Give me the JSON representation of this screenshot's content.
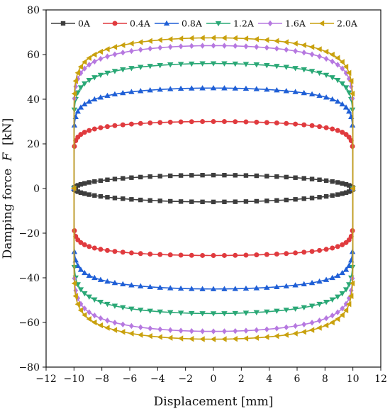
{
  "chart_data": {
    "type": "line",
    "title": "",
    "xlabel": "Displacement [mm]",
    "ylabel": "Damping force",
    "ylabel_var": "F",
    "ylabel_unit": "[kN]",
    "xlim": [
      -12,
      12
    ],
    "ylim": [
      -80,
      80
    ],
    "xticks": [
      -12,
      -10,
      -8,
      -6,
      -4,
      -2,
      0,
      2,
      4,
      6,
      8,
      10,
      12
    ],
    "yticks": [
      -80,
      -60,
      -40,
      -20,
      0,
      20,
      40,
      60,
      80
    ],
    "grid": false,
    "legend_position": "top",
    "amplitude_mm": 10,
    "series": [
      {
        "name": "0A",
        "color": "#3d3d3d",
        "marker": "square",
        "peak_force": 6,
        "shape": "ellipse"
      },
      {
        "name": "0.4A",
        "color": "#e03a3e",
        "marker": "circle",
        "peak_force": 30,
        "shape": "rounded"
      },
      {
        "name": "0.8A",
        "color": "#1f5fd6",
        "marker": "triangle-up",
        "peak_force": 45,
        "shape": "rounded"
      },
      {
        "name": "1.2A",
        "color": "#2aa876",
        "marker": "triangle-down",
        "peak_force": 56,
        "shape": "rounded"
      },
      {
        "name": "1.6A",
        "color": "#b678e0",
        "marker": "diamond",
        "peak_force": 64,
        "shape": "rounded"
      },
      {
        "name": "2.0A",
        "color": "#c9a10e",
        "marker": "triangle-left",
        "peak_force": 67.5,
        "shape": "rounded"
      }
    ]
  }
}
